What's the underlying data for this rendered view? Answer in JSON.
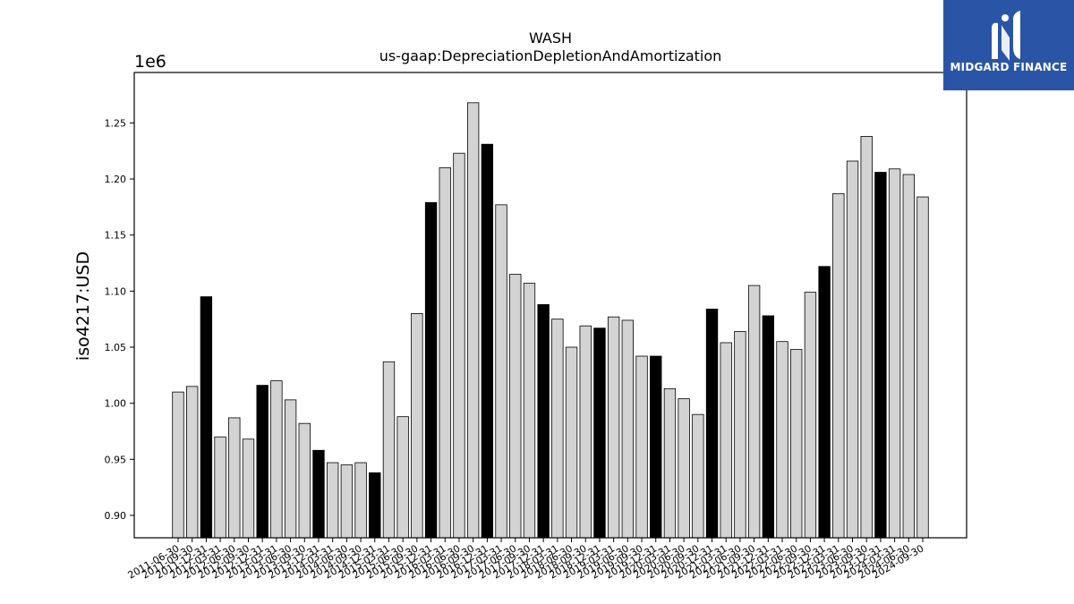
{
  "chart_data": {
    "type": "bar",
    "title": "WASH",
    "subtitle": "us-gaap:DepreciationDepletionAndAmortization",
    "ylabel": "iso4217:USD",
    "xlabel": "",
    "y_offset_text": "1e6",
    "ylim": [
      880000,
      1295000
    ],
    "yticks": [
      {
        "value": 900000,
        "label": "0.90"
      },
      {
        "value": 950000,
        "label": "0.95"
      },
      {
        "value": 1000000,
        "label": "1.00"
      },
      {
        "value": 1050000,
        "label": "1.05"
      },
      {
        "value": 1100000,
        "label": "1.10"
      },
      {
        "value": 1150000,
        "label": "1.15"
      },
      {
        "value": 1200000,
        "label": "1.20"
      },
      {
        "value": 1250000,
        "label": "1.25"
      }
    ],
    "colors": {
      "regular": "#d3d3d3",
      "highlight": "#000000",
      "edge": "#000000"
    },
    "categories": [
      "2011-06-30",
      "2011-09-30",
      "2011-12-31",
      "2012-03-31",
      "2012-06-30",
      "2012-09-30",
      "2012-12-31",
      "2013-03-31",
      "2013-06-30",
      "2013-09-30",
      "2013-12-31",
      "2014-03-31",
      "2014-06-30",
      "2014-09-30",
      "2014-12-31",
      "2015-03-31",
      "2015-06-30",
      "2015-09-30",
      "2015-12-31",
      "2016-03-31",
      "2016-06-30",
      "2016-09-30",
      "2016-12-31",
      "2017-03-31",
      "2017-06-30",
      "2017-09-30",
      "2017-12-31",
      "2018-03-31",
      "2018-06-30",
      "2018-09-30",
      "2018-12-31",
      "2019-03-31",
      "2019-06-30",
      "2019-09-30",
      "2019-12-31",
      "2020-03-31",
      "2020-06-30",
      "2020-09-30",
      "2020-12-31",
      "2021-03-31",
      "2021-06-30",
      "2021-09-30",
      "2021-12-31",
      "2022-03-31",
      "2022-06-30",
      "2022-09-30",
      "2022-12-31",
      "2023-03-31",
      "2023-06-30",
      "2023-09-30",
      "2023-12-31",
      "2024-03-31",
      "2024-06-30",
      "2024-09-30"
    ],
    "values": [
      1010000,
      1015000,
      1095000,
      970000,
      987000,
      968000,
      1016000,
      1020000,
      1003000,
      982000,
      958000,
      947000,
      945000,
      947000,
      938000,
      1037000,
      988000,
      1080000,
      1179000,
      1210000,
      1223000,
      1268000,
      1231000,
      1177000,
      1115000,
      1107000,
      1088000,
      1075000,
      1050000,
      1069000,
      1067000,
      1077000,
      1074000,
      1042000,
      1042000,
      1013000,
      1004000,
      990000,
      1084000,
      1054000,
      1064000,
      1105000,
      1078000,
      1055000,
      1048000,
      1099000,
      1122000,
      1187000,
      1216000,
      1238000,
      1206000,
      1209000,
      1204000,
      1184000
    ],
    "highlight": [
      false,
      false,
      true,
      false,
      false,
      false,
      true,
      false,
      false,
      false,
      true,
      false,
      false,
      false,
      true,
      false,
      false,
      false,
      true,
      false,
      false,
      false,
      true,
      false,
      false,
      false,
      true,
      false,
      false,
      false,
      true,
      false,
      false,
      false,
      true,
      false,
      false,
      false,
      true,
      false,
      false,
      false,
      true,
      false,
      false,
      false,
      true,
      false,
      false,
      false,
      true,
      false,
      false,
      false
    ]
  },
  "logo": {
    "text": "MIDGARD FINANCE",
    "icon": "midgard-m-logo-icon",
    "background": "#2a55a6"
  }
}
